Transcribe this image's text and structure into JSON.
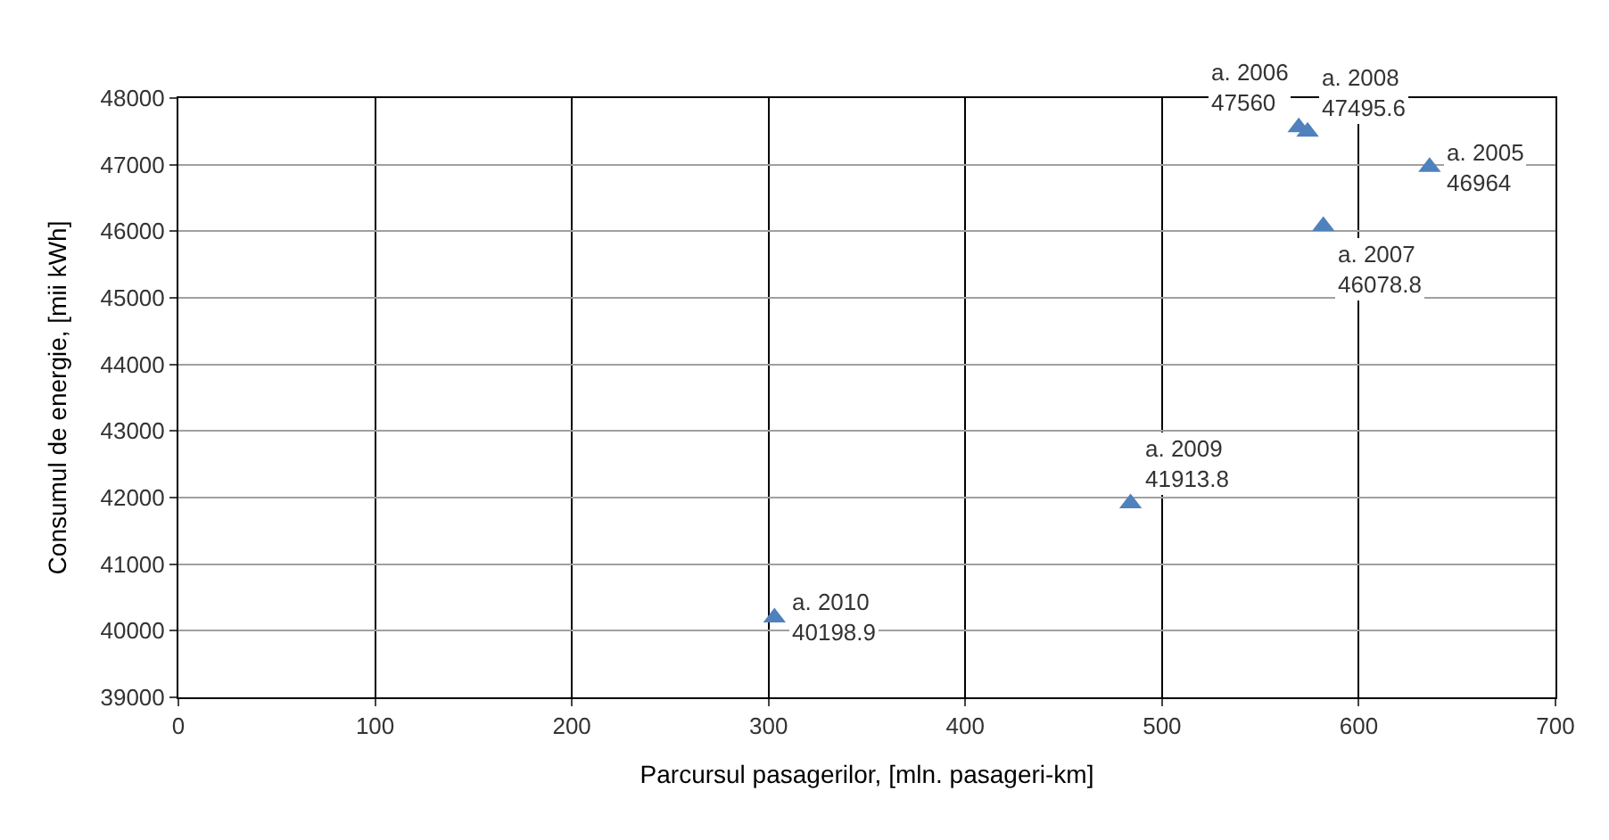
{
  "chart_data": {
    "type": "scatter",
    "xlabel": "Parcursul pasagerilor, [mln. pasageri-km]",
    "ylabel": "Consumul de energie, [mii kWh]",
    "x": [
      636,
      569.5,
      582,
      574,
      484,
      303
    ],
    "series": [
      {
        "color": "#4f81bd",
        "values": [
          46964,
          47560,
          46078.8,
          47495.6,
          41913.8,
          40198.9
        ],
        "value_labels": [
          "a. 2005\n46964",
          "a. 2006\n47560",
          "a. 2007\n46078.8",
          "a. 2008\n47495.6",
          "a. 2009\n41913.8",
          "a. 2010\n40198.9"
        ]
      }
    ],
    "xlim": [
      0,
      700
    ],
    "xticks": [
      0,
      100,
      200,
      300,
      400,
      500,
      600,
      700
    ],
    "ylim": [
      39000,
      48000
    ],
    "yticks": [
      39000,
      40000,
      41000,
      42000,
      43000,
      44000,
      45000,
      46000,
      47000,
      48000
    ],
    "grid": true,
    "marker": "triangle"
  }
}
